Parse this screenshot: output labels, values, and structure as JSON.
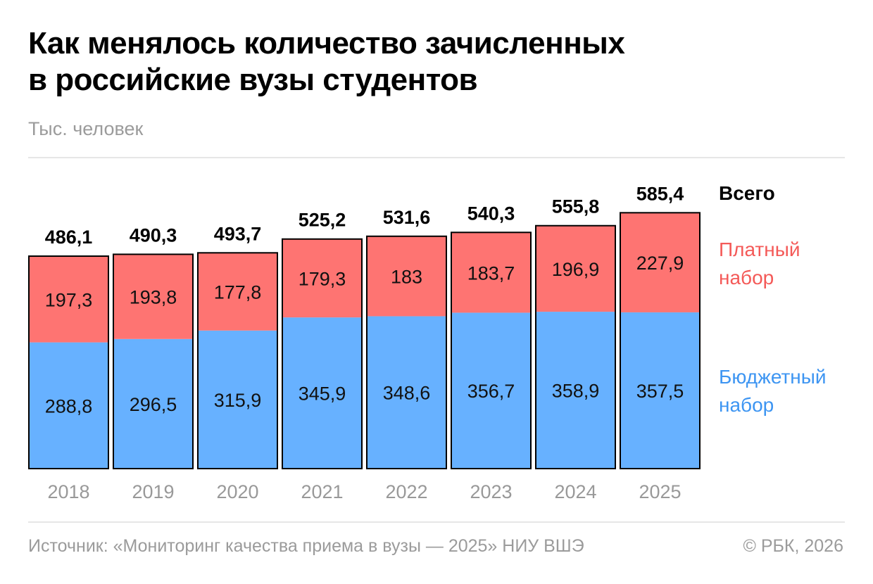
{
  "header": {
    "title_line1": "Как менялось количество зачисленных",
    "title_line2": "в российские вузы студентов",
    "subtitle": "Тыс. человек"
  },
  "legend": {
    "total": "Всего",
    "paid_line1": "Платный",
    "paid_line2": "набор",
    "budget_line1": "Бюджетный",
    "budget_line2": "набор"
  },
  "footer": {
    "source": "Источник: «Мониторинг качества приема в вузы — 2025» НИУ ВШЭ",
    "copyright": "© РБК, 2026"
  },
  "colors": {
    "paid": "#fe7472",
    "budget": "#67b1ff",
    "paid_legend": "#f45a58",
    "budget_legend": "#3d95f2",
    "axis_text": "#999999"
  },
  "chart_data": {
    "type": "bar",
    "stacked": true,
    "categories": [
      "2018",
      "2019",
      "2020",
      "2021",
      "2022",
      "2023",
      "2024",
      "2025"
    ],
    "series": [
      {
        "name": "Бюджетный набор",
        "labels": [
          "288,8",
          "296,5",
          "315,9",
          "345,9",
          "348,6",
          "356,7",
          "358,9",
          "357,5"
        ],
        "values": [
          288.8,
          296.5,
          315.9,
          345.9,
          348.6,
          356.7,
          358.9,
          357.5
        ]
      },
      {
        "name": "Платный набор",
        "labels": [
          "197,3",
          "193,8",
          "177,8",
          "179,3",
          "183",
          "183,7",
          "196,9",
          "227,9"
        ],
        "values": [
          197.3,
          193.8,
          177.8,
          179.3,
          183,
          183.7,
          196.9,
          227.9
        ]
      }
    ],
    "totals": {
      "name": "Всего",
      "labels": [
        "486,1",
        "490,3",
        "493,7",
        "525,2",
        "531,6",
        "540,3",
        "555,8",
        "585,4"
      ],
      "values": [
        486.1,
        490.3,
        493.7,
        525.2,
        531.6,
        540.3,
        555.8,
        585.4
      ]
    },
    "ylabel": "Тыс. человек",
    "ylim": [
      0,
      600
    ],
    "grid": false,
    "legend": "right"
  }
}
